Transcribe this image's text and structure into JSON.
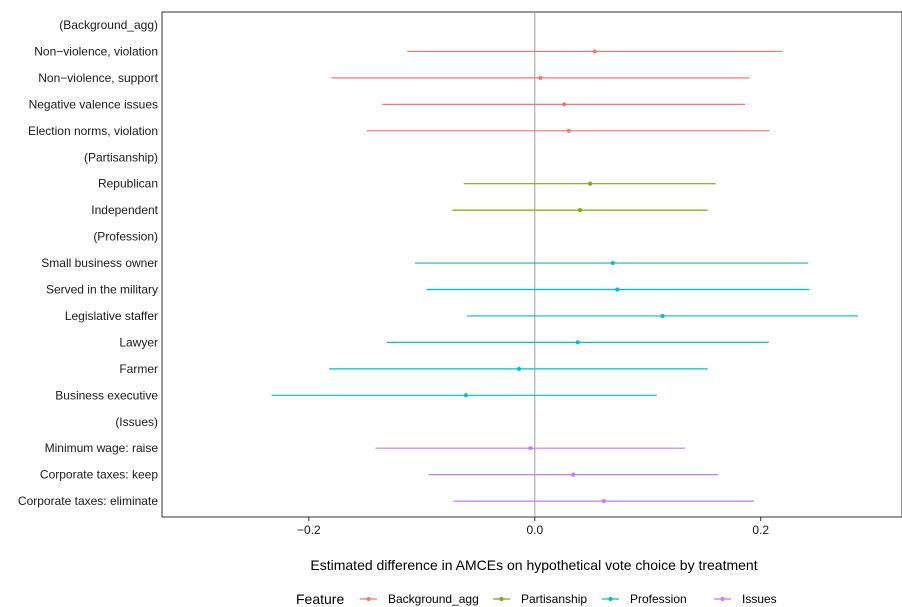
{
  "chart_data": {
    "type": "scatter",
    "subtype": "coefficient-plot-with-error-bars",
    "xlabel": "Estimated difference in AMCEs on hypothetical vote choice by treatment",
    "ylabel": "",
    "xlim": [
      -0.33,
      0.325
    ],
    "xticks": [
      -0.2,
      0.0,
      0.2
    ],
    "xtick_labels": [
      "−0.2",
      "0.0",
      "0.2"
    ],
    "reference_line_x": 0,
    "grid": false,
    "legend": {
      "title": "Feature",
      "placement": "bottom",
      "entries": [
        {
          "name": "Background_agg",
          "color": "#F8766D"
        },
        {
          "name": "Partisanship",
          "color": "#7CAE00"
        },
        {
          "name": "Profession",
          "color": "#00BFC4"
        },
        {
          "name": "Issues",
          "color": "#C77CFF"
        }
      ]
    },
    "rows": [
      {
        "label": "(Background_agg)",
        "feature": null,
        "estimate": null,
        "lower": null,
        "upper": null
      },
      {
        "label": "Non−violence, violation",
        "feature": "Background_agg",
        "estimate": 0.053,
        "lower": -0.113,
        "upper": 0.219
      },
      {
        "label": "Non−violence, support",
        "feature": "Background_agg",
        "estimate": 0.005,
        "lower": -0.18,
        "upper": 0.19
      },
      {
        "label": "Negative valence issues",
        "feature": "Background_agg",
        "estimate": 0.026,
        "lower": -0.135,
        "upper": 0.186
      },
      {
        "label": "Election norms, violation",
        "feature": "Background_agg",
        "estimate": 0.03,
        "lower": -0.149,
        "upper": 0.208
      },
      {
        "label": "(Partisanship)",
        "feature": null,
        "estimate": null,
        "lower": null,
        "upper": null
      },
      {
        "label": "Republican",
        "feature": "Partisanship",
        "estimate": 0.049,
        "lower": -0.063,
        "upper": 0.16
      },
      {
        "label": "Independent",
        "feature": "Partisanship",
        "estimate": 0.04,
        "lower": -0.073,
        "upper": 0.153
      },
      {
        "label": "(Profession)",
        "feature": null,
        "estimate": null,
        "lower": null,
        "upper": null
      },
      {
        "label": "Small business owner",
        "feature": "Profession",
        "estimate": 0.069,
        "lower": -0.106,
        "upper": 0.242
      },
      {
        "label": "Served in the military",
        "feature": "Profession",
        "estimate": 0.073,
        "lower": -0.096,
        "upper": 0.243
      },
      {
        "label": "Legislative staffer",
        "feature": "Profession",
        "estimate": 0.113,
        "lower": -0.06,
        "upper": 0.286
      },
      {
        "label": "Lawyer",
        "feature": "Profession",
        "estimate": 0.038,
        "lower": -0.131,
        "upper": 0.207
      },
      {
        "label": "Farmer",
        "feature": "Profession",
        "estimate": -0.014,
        "lower": -0.182,
        "upper": 0.153
      },
      {
        "label": "Business executive",
        "feature": "Profession",
        "estimate": -0.061,
        "lower": -0.233,
        "upper": 0.108
      },
      {
        "label": "(Issues)",
        "feature": null,
        "estimate": null,
        "lower": null,
        "upper": null
      },
      {
        "label": "Minimum wage: raise",
        "feature": "Issues",
        "estimate": -0.004,
        "lower": -0.141,
        "upper": 0.133
      },
      {
        "label": "Corporate taxes: keep",
        "feature": "Issues",
        "estimate": 0.034,
        "lower": -0.094,
        "upper": 0.162
      },
      {
        "label": "Corporate taxes: eliminate",
        "feature": "Issues",
        "estimate": 0.061,
        "lower": -0.072,
        "upper": 0.194
      }
    ]
  }
}
